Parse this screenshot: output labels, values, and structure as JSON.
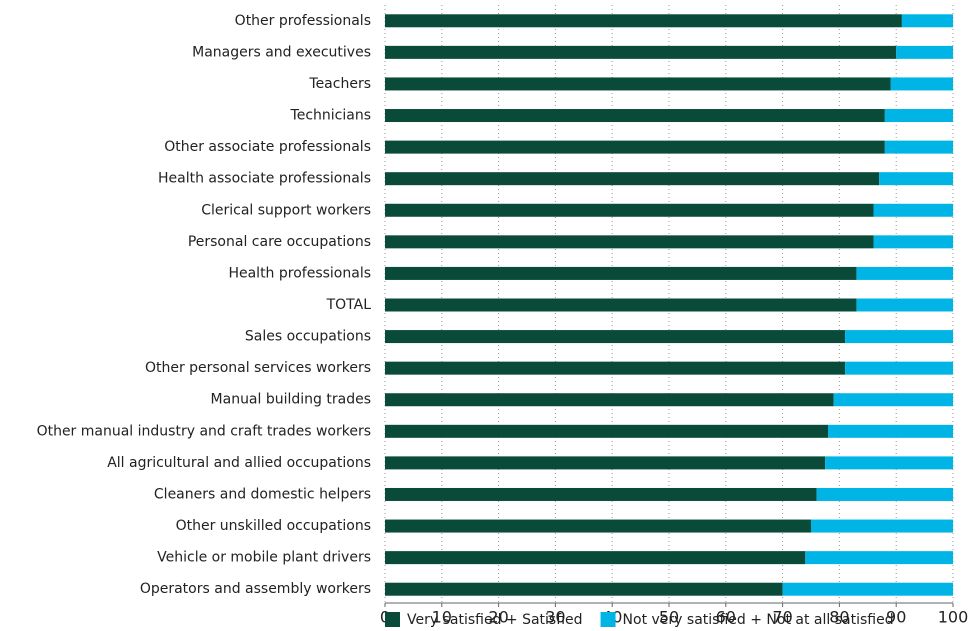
{
  "chart_data": {
    "type": "stacked_barh",
    "categories": [
      "Other professionals",
      "Managers and executives",
      "Teachers",
      "Technicians",
      "Other associate professionals",
      "Health associate professionals",
      "Clerical support workers",
      "Personal care occupations",
      "Health professionals",
      "TOTAL",
      "Sales occupations",
      "Other personal services workers",
      "Manual building trades",
      "Other manual industry and craft trades workers",
      "All agricultural and allied occupations",
      "Cleaners and domestic helpers",
      "Other unskilled occupations",
      "Vehicle or mobile plant drivers",
      "Operators and assembly workers"
    ],
    "series": [
      {
        "name": "Very satisfied + Satisfied",
        "color": "#0a4a39",
        "values": [
          91,
          90,
          89,
          88,
          88,
          87,
          86,
          86,
          83,
          83,
          81,
          81,
          79,
          78,
          77.5,
          76,
          75,
          74,
          70
        ]
      },
      {
        "name": "Not very satisfied + Not at all satisfied",
        "color": "#00b5e5",
        "values": [
          9,
          10,
          11,
          12,
          12,
          13,
          14,
          14,
          17,
          17,
          19,
          19,
          21,
          22,
          22.5,
          24,
          25,
          26,
          30
        ]
      }
    ],
    "xlim": [
      0,
      100
    ],
    "xticks": [
      0,
      10,
      20,
      30,
      40,
      50,
      60,
      70,
      80,
      90,
      100
    ],
    "grid": true,
    "legend": "bottom"
  }
}
